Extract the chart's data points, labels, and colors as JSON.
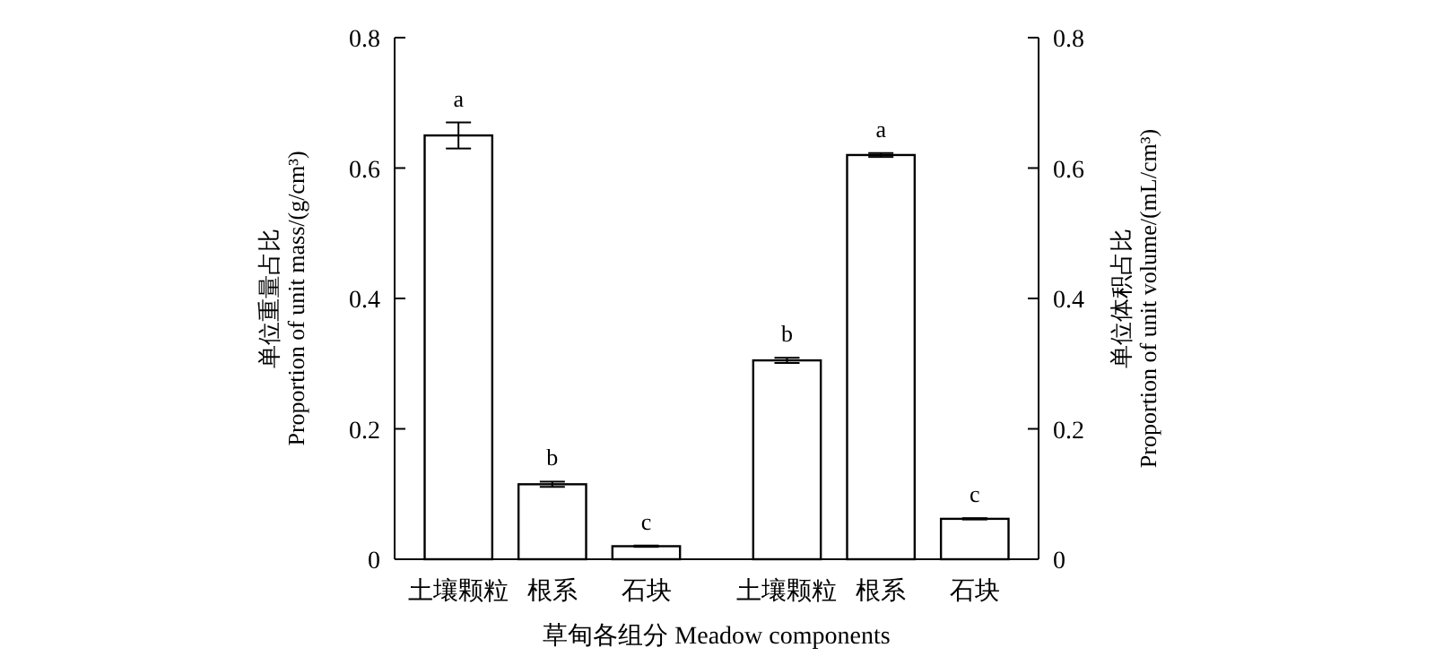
{
  "chart_data": {
    "type": "bar",
    "xlabel": "草甸各组分 Meadow components",
    "ylabel": "单位重量占比\nProportion of unit mass/(g/cm³)",
    "y2label": "单位体积占比\nProportion of unit volume/(mL/cm³)",
    "categories": [
      "土壤颗粒",
      "根系",
      "石块",
      "土壤颗粒",
      "根系",
      "石块"
    ],
    "series": [
      {
        "color": "#ffffff",
        "values": [
          0.65,
          0.115,
          0.02,
          null,
          null,
          null
        ],
        "errors": [
          0.02,
          0.004,
          0.001,
          null,
          null,
          null
        ]
      },
      {
        "color": "#ffffff",
        "axis": "y2",
        "values": [
          null,
          null,
          null,
          0.305,
          0.62,
          0.062
        ],
        "errors": [
          null,
          null,
          null,
          0.004,
          0.003,
          0.001
        ]
      }
    ],
    "ylim": [
      0,
      0.8
    ],
    "yticks": [
      0,
      0.2,
      0.4,
      0.6,
      0.8
    ],
    "y2lim": [
      0,
      0.8
    ],
    "y2ticks": [
      0,
      0.2,
      0.4,
      0.6,
      0.8
    ],
    "annotations": [
      "a",
      "b",
      "c",
      "b",
      "a",
      "c"
    ]
  }
}
